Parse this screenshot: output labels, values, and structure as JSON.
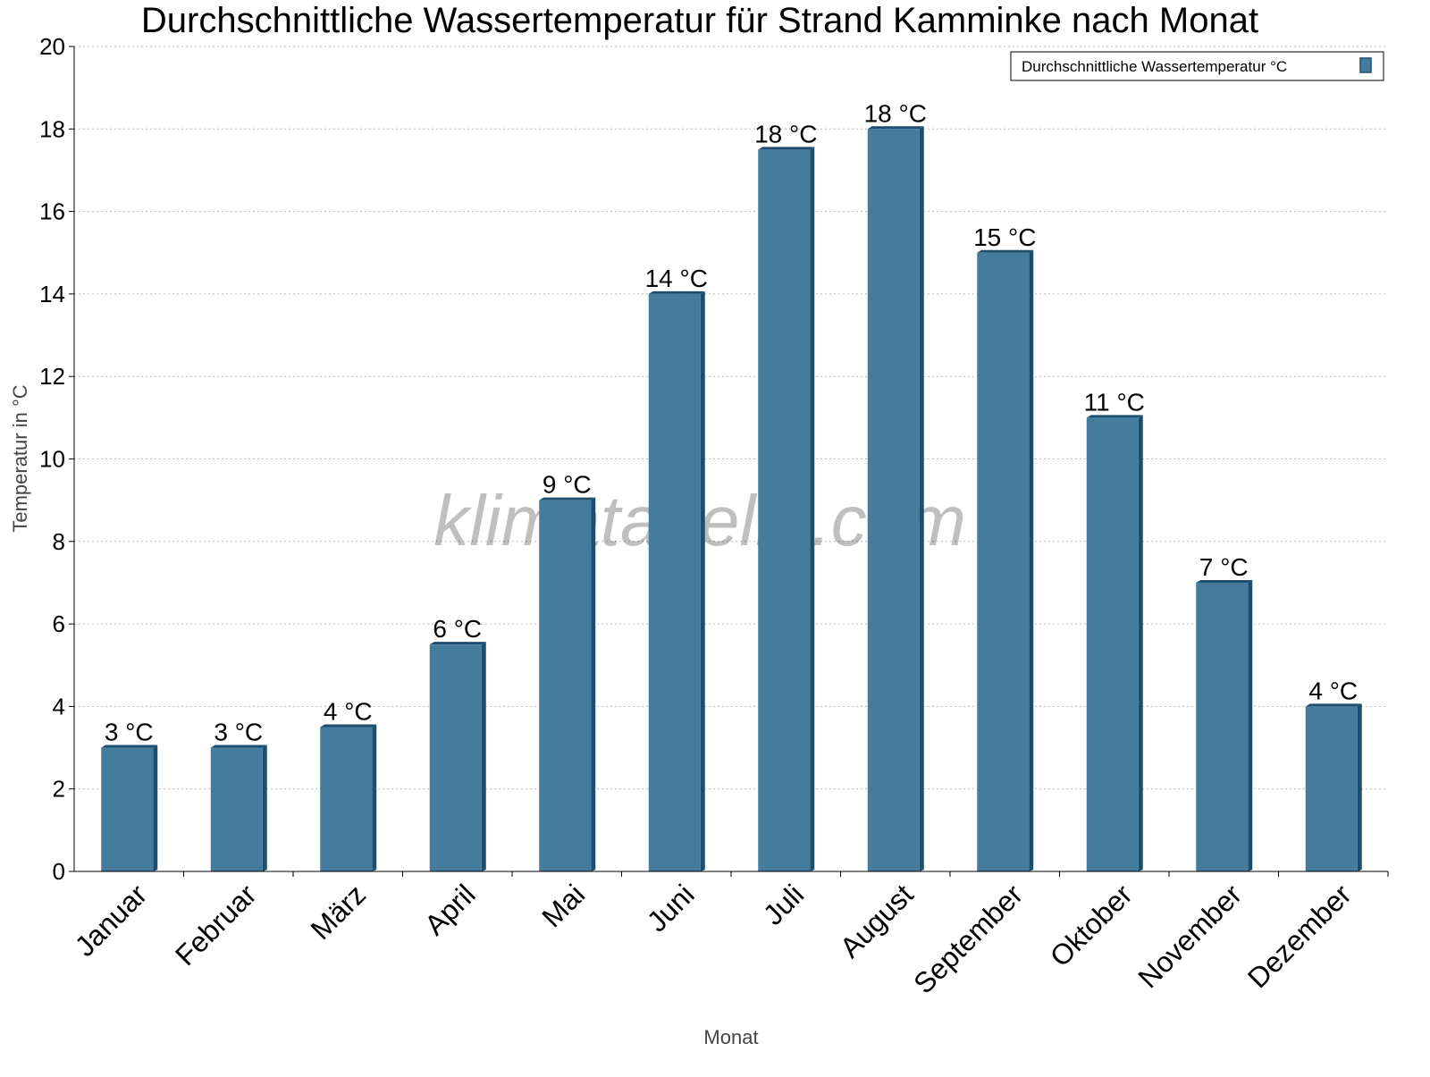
{
  "chart_data": {
    "type": "bar",
    "title": "Durchschnittliche Wassertemperatur für Strand Kamminke nach Monat",
    "xlabel": "Monat",
    "ylabel": "Temperatur in °C",
    "ylim": [
      0,
      20
    ],
    "yticks": [
      0,
      2,
      4,
      6,
      8,
      10,
      12,
      14,
      16,
      18,
      20
    ],
    "grid": true,
    "legend_position": "top-right",
    "categories": [
      "Januar",
      "Februar",
      "März",
      "April",
      "Mai",
      "Juni",
      "Juli",
      "August",
      "September",
      "Oktober",
      "November",
      "Dezember"
    ],
    "series": [
      {
        "name": "Durchschnittliche Wassertemperatur °C",
        "values": [
          3.0,
          3.0,
          3.5,
          5.5,
          9.0,
          14.0,
          17.5,
          18.0,
          15.0,
          11.0,
          7.0,
          4.0
        ],
        "labels": [
          "3 °C",
          "3 °C",
          "4 °C",
          "6 °C",
          "9 °C",
          "14 °C",
          "18 °C",
          "18 °C",
          "15 °C",
          "11 °C",
          "7 °C",
          "4 °C"
        ],
        "color": "#457b9d",
        "edge_color": "#1d4e6e"
      }
    ],
    "watermark": "klimatabelle.com"
  }
}
